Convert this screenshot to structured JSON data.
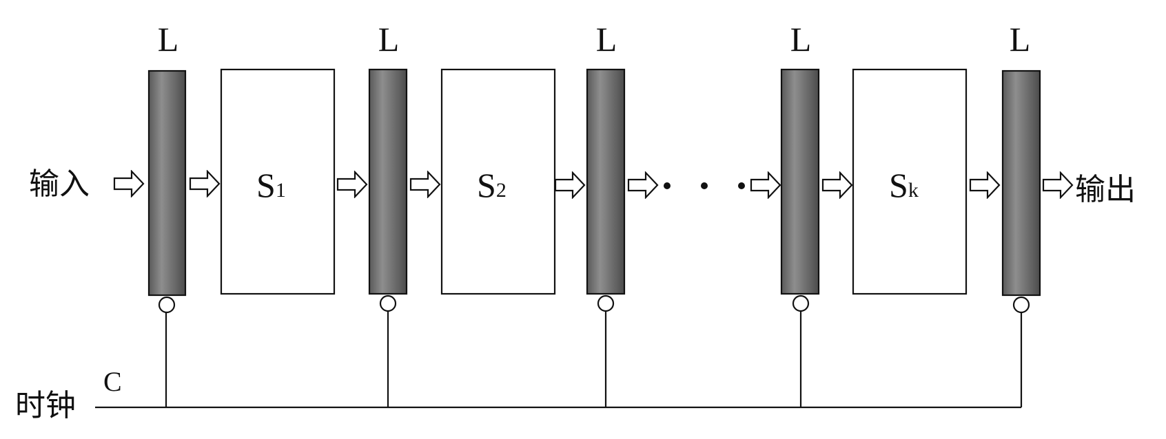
{
  "latch_label": "L",
  "latches": [
    "L",
    "L",
    "L",
    "L",
    "L"
  ],
  "stages": [
    {
      "letter": "S",
      "subscript": "1"
    },
    {
      "letter": "S",
      "subscript": "2"
    },
    {
      "letter": "S",
      "subscript": "k"
    }
  ],
  "input_label": "输入",
  "output_label": "输出",
  "clock_label": "时钟",
  "clock_signal": "C",
  "colors": {
    "latch_dark": "#4a4a4a",
    "latch_mid": "#8a8a8a",
    "latch_light": "#6a6a6a",
    "stroke": "#111111"
  }
}
